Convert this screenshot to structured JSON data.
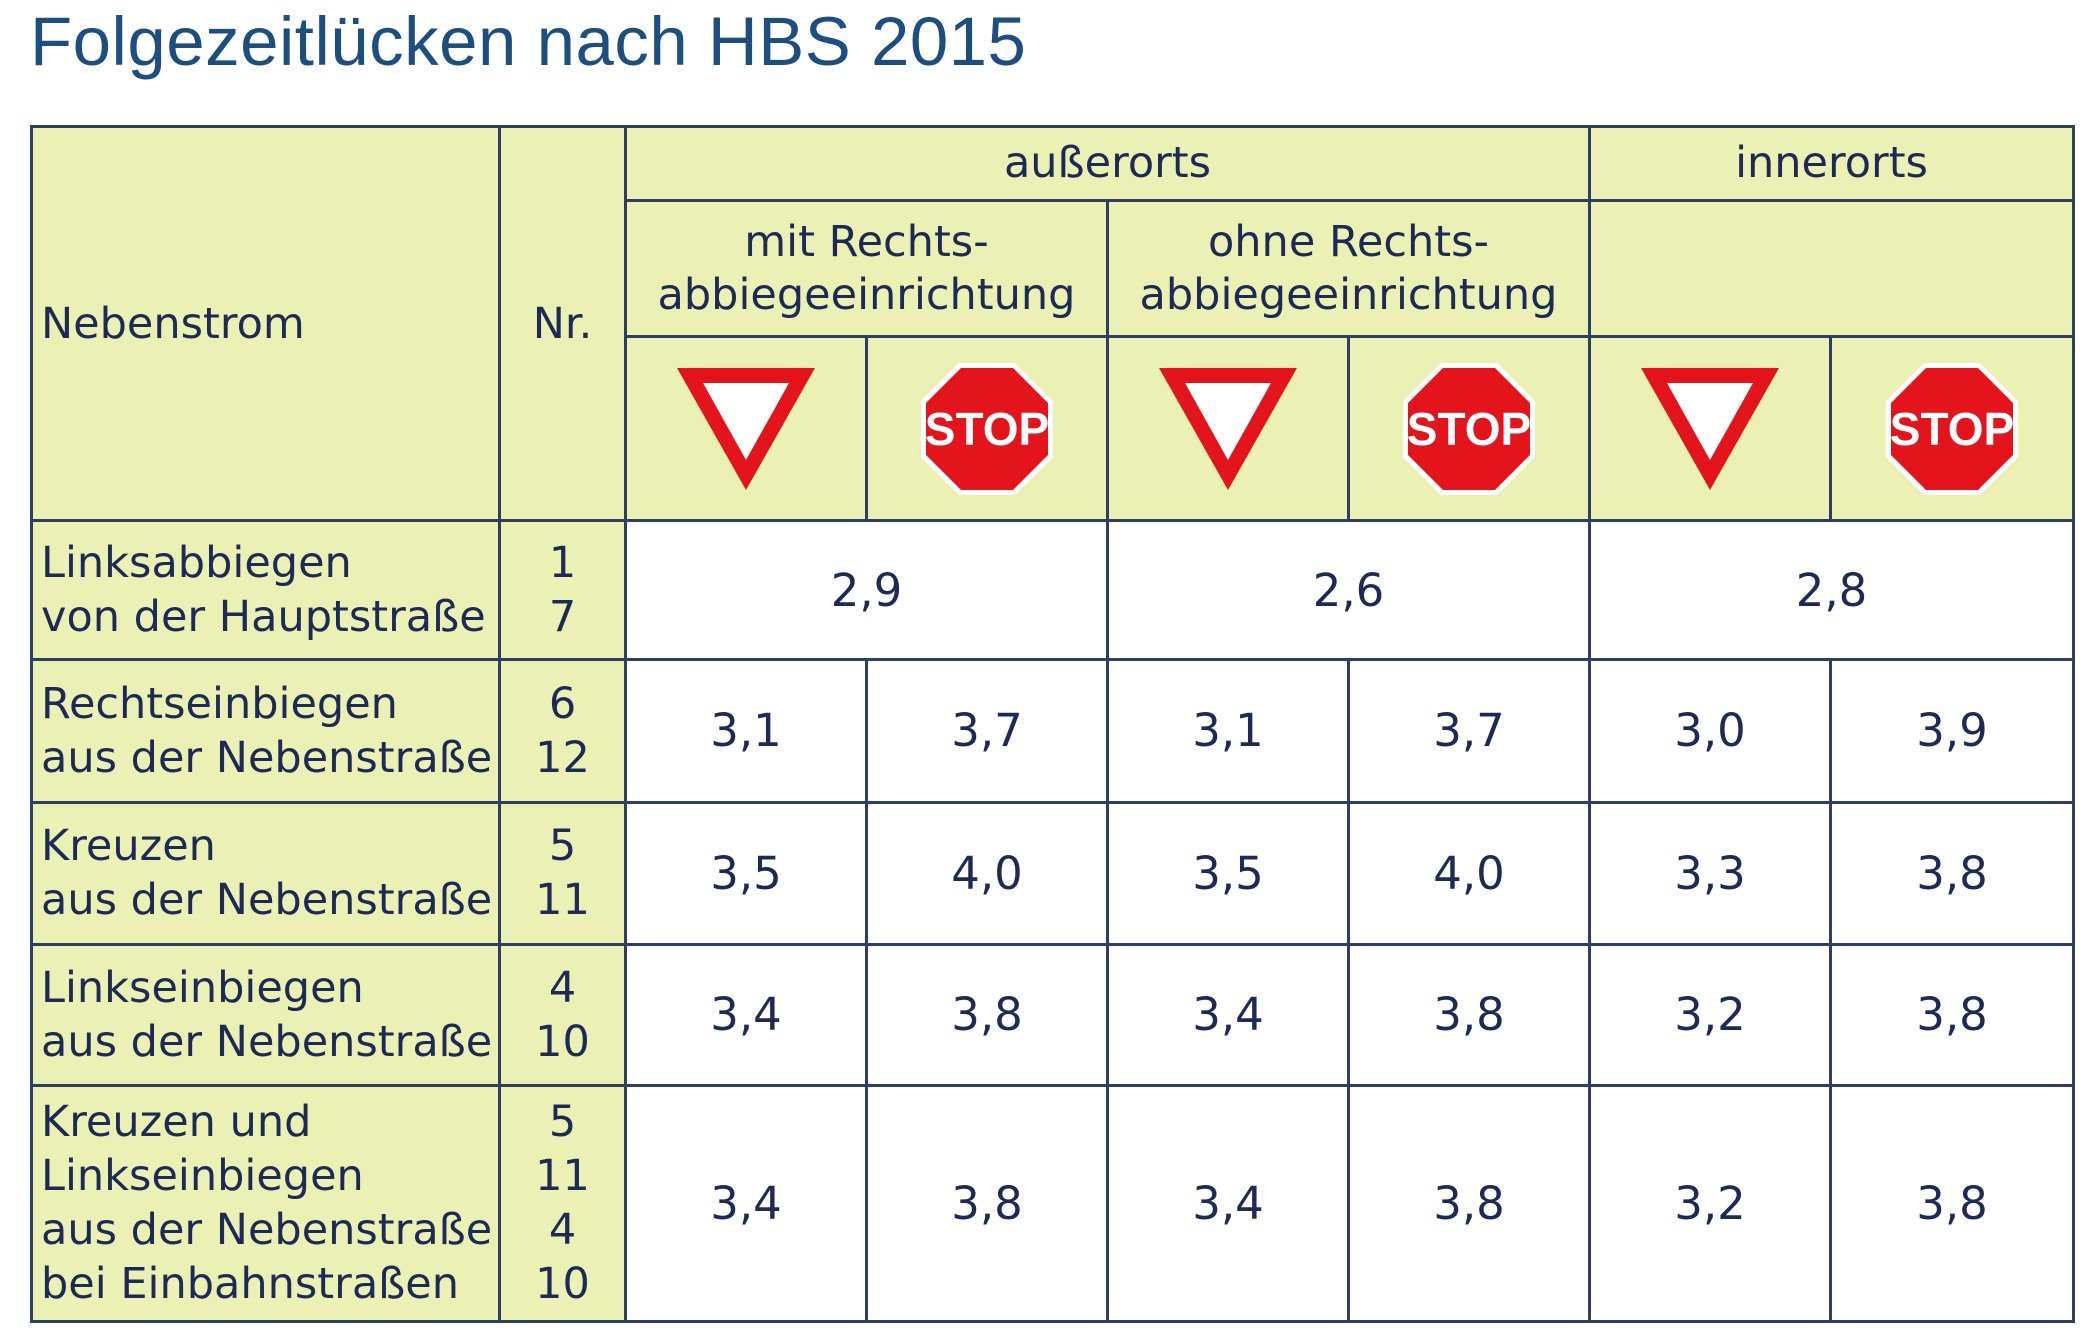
{
  "title": "Folgezeitlücken nach HBS 2015",
  "table": {
    "header": {
      "nebenstrom": "Nebenstrom",
      "nr": "Nr.",
      "ausserorts": "außerorts",
      "innerorts": "innerorts",
      "mit_line1": "mit Rechts-",
      "mit_line2": "abbiegeeinrichtung",
      "ohne_line1": "ohne Rechts-",
      "ohne_line2": "abbiegeeinrichtung",
      "stop_text": "STOP"
    },
    "signs": [
      "yield-sign",
      "stop-sign",
      "yield-sign",
      "stop-sign",
      "yield-sign",
      "stop-sign"
    ],
    "colors": {
      "header_bg": "#ebf1b4",
      "border": "#2e3f62",
      "title": "#1c4e80",
      "text": "#1d2a55",
      "sign_red": "#e3141b"
    },
    "rows": [
      {
        "label": [
          "Linksabbiegen",
          "von der Hauptstraße"
        ],
        "nr": [
          "1",
          "7"
        ],
        "values": [
          "2,9",
          "2,6",
          "2,8"
        ]
      },
      {
        "label": [
          "Rechtseinbiegen",
          "aus der Nebenstraße"
        ],
        "nr": [
          "6",
          "12"
        ],
        "values": [
          "3,1",
          "3,7",
          "3,1",
          "3,7",
          "3,0",
          "3,9"
        ]
      },
      {
        "label": [
          "Kreuzen",
          "aus der Nebenstraße"
        ],
        "nr": [
          "5",
          "11"
        ],
        "values": [
          "3,5",
          "4,0",
          "3,5",
          "4,0",
          "3,3",
          "3,8"
        ]
      },
      {
        "label": [
          "Linkseinbiegen",
          "aus der Nebenstraße"
        ],
        "nr": [
          "4",
          "10"
        ],
        "values": [
          "3,4",
          "3,8",
          "3,4",
          "3,8",
          "3,2",
          "3,8"
        ]
      },
      {
        "label": [
          "Kreuzen und",
          "Linkseinbiegen",
          "aus der Nebenstraße",
          "bei Einbahnstraßen"
        ],
        "nr": [
          "5",
          "11",
          "4",
          "10"
        ],
        "values": [
          "3,4",
          "3,8",
          "3,4",
          "3,8",
          "3,2",
          "3,8"
        ]
      }
    ]
  }
}
